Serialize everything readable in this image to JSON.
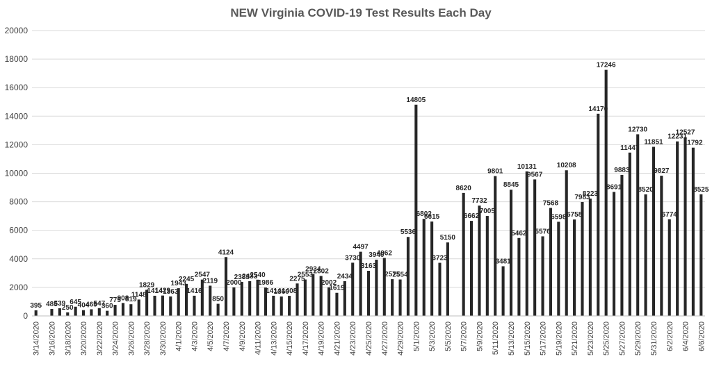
{
  "chart_data": {
    "type": "bar",
    "title": "NEW Virginia COVID-19 Test Results Each Day",
    "xlabel": "",
    "ylabel": "",
    "ylim": [
      0,
      20000
    ],
    "yticks": [
      0,
      2000,
      4000,
      6000,
      8000,
      10000,
      12000,
      14000,
      16000,
      18000,
      20000
    ],
    "grid": true,
    "bar_color": "#262626",
    "categories": [
      "3/14/2020",
      "3/15/2020",
      "3/16/2020",
      "3/17/2020",
      "3/18/2020",
      "3/19/2020",
      "3/20/2020",
      "3/21/2020",
      "3/22/2020",
      "3/23/2020",
      "3/24/2020",
      "3/25/2020",
      "3/26/2020",
      "3/27/2020",
      "3/28/2020",
      "3/29/2020",
      "3/30/2020",
      "3/31/2020",
      "4/1/2020",
      "4/2/2020",
      "4/3/2020",
      "4/4/2020",
      "4/5/2020",
      "4/6/2020",
      "4/7/2020",
      "4/8/2020",
      "4/9/2020",
      "4/10/2020",
      "4/11/2020",
      "4/12/2020",
      "4/13/2020",
      "4/14/2020",
      "4/15/2020",
      "4/16/2020",
      "4/17/2020",
      "4/18/2020",
      "4/19/2020",
      "4/20/2020",
      "4/21/2020",
      "4/22/2020",
      "4/23/2020",
      "4/24/2020",
      "4/25/2020",
      "4/26/2020",
      "4/27/2020",
      "4/28/2020",
      "4/29/2020",
      "4/30/2020",
      "5/1/2020",
      "5/2/2020",
      "5/3/2020",
      "5/4/2020",
      "5/5/2020",
      "5/6/2020",
      "5/7/2020",
      "5/8/2020",
      "5/9/2020",
      "5/10/2020",
      "5/11/2020",
      "5/12/2020",
      "5/13/2020",
      "5/14/2020",
      "5/15/2020",
      "5/16/2020",
      "5/17/2020",
      "5/18/2020",
      "5/19/2020",
      "5/20/2020",
      "5/21/2020",
      "5/22/2020",
      "5/23/2020",
      "5/24/2020",
      "5/25/2020",
      "5/26/2020",
      "5/27/2020",
      "5/28/2020",
      "5/29/2020",
      "5/30/2020",
      "5/31/2020",
      "6/1/2020",
      "6/2/2020",
      "6/3/2020",
      "6/4/2020",
      "6/5/2020",
      "6/6/2020"
    ],
    "tick_labels": [
      "3/14/2020",
      "3/16/2020",
      "3/18/2020",
      "3/20/2020",
      "3/22/2020",
      "3/24/2020",
      "3/26/2020",
      "3/28/2020",
      "3/30/2020",
      "4/1/2020",
      "4/3/2020",
      "4/5/2020",
      "4/7/2020",
      "4/9/2020",
      "4/11/2020",
      "4/13/2020",
      "4/15/2020",
      "4/17/2020",
      "4/19/2020",
      "4/21/2020",
      "4/23/2020",
      "4/25/2020",
      "4/27/2020",
      "4/29/2020",
      "5/1/2020",
      "5/3/2020",
      "5/5/2020",
      "5/7/2020",
      "5/9/2020",
      "5/11/2020",
      "5/13/2020",
      "5/15/2020",
      "5/17/2020",
      "5/19/2020",
      "5/21/2020",
      "5/23/2020",
      "5/25/2020",
      "5/27/2020",
      "5/29/2020",
      "5/31/2020",
      "6/2/2020",
      "6/4/2020",
      "6/6/2020"
    ],
    "values": [
      395,
      null,
      485,
      539,
      250,
      645,
      404,
      465,
      547,
      360,
      775,
      908,
      819,
      1148,
      1829,
      1414,
      1429,
      1363,
      1943,
      2245,
      1416,
      2547,
      2119,
      850,
      4124,
      2000,
      2383,
      2433,
      2540,
      1986,
      1414,
      1360,
      1408,
      2275,
      2553,
      2934,
      2802,
      2002,
      1619,
      2434,
      3730,
      4497,
      3163,
      3940,
      4062,
      2575,
      2554,
      5536,
      14805,
      6802,
      6615,
      3723,
      5150,
      null,
      8620,
      6662,
      7732,
      7005,
      9801,
      3481,
      8845,
      5462,
      10131,
      9567,
      5576,
      7568,
      6598,
      10208,
      6758,
      7983,
      8223,
      14170,
      17246,
      8691,
      9883,
      11447,
      12730,
      8520,
      11851,
      9827,
      6774,
      12231,
      12527,
      11792,
      8525
    ]
  }
}
